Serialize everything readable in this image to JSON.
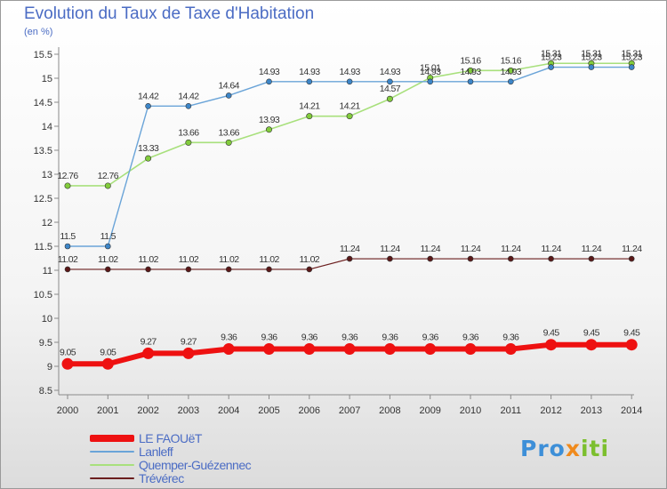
{
  "title": "Evolution du Taux de Taxe d'Habitation",
  "subtitle": "(en %)",
  "logo": {
    "part1": "Pro",
    "part2": "x",
    "part3": "iti"
  },
  "chart_data": {
    "type": "line",
    "x": [
      "2000",
      "2001",
      "2002",
      "2003",
      "2004",
      "2005",
      "2006",
      "2007",
      "2008",
      "2009",
      "2010",
      "2011",
      "2012",
      "2013",
      "2014"
    ],
    "ylim": [
      8.5,
      15.5
    ],
    "yticks": [
      8.5,
      9,
      9.5,
      10,
      10.5,
      11,
      11.5,
      12,
      12.5,
      13,
      13.5,
      14,
      14.5,
      15,
      15.5
    ],
    "grid": false,
    "legend_position": "bottom-left",
    "series": [
      {
        "name": "Trévérec",
        "color": "#6b1e1e",
        "point_color": "#5a1818",
        "width": 1.2,
        "r": 3,
        "values": [
          11.02,
          11.02,
          11.02,
          11.02,
          11.02,
          11.02,
          11.02,
          11.24,
          11.24,
          11.24,
          11.24,
          11.24,
          11.24,
          11.24,
          11.24
        ],
        "labels": [
          "11.02",
          "11.02",
          "11.02",
          "11.02",
          "11.02",
          "11.02",
          "11.02",
          "11.24",
          "11.24",
          "11.24",
          "11.24",
          "11.24",
          "11.24",
          "11.24",
          "11.24"
        ]
      },
      {
        "name": "Quemper-Guézennec",
        "color": "#a8e07c",
        "point_color": "#82cc3c",
        "width": 1.6,
        "r": 3.2,
        "values": [
          12.76,
          12.76,
          13.33,
          13.66,
          13.66,
          13.93,
          14.21,
          14.21,
          14.57,
          15.01,
          15.16,
          15.16,
          15.31,
          15.31,
          15.31
        ],
        "labels": [
          "12.76",
          "12.76",
          "13.33",
          "13.66",
          "13.66",
          "13.93",
          "14.21",
          "14.21",
          "14.57",
          "15.01",
          "15.16",
          "15.16",
          "15.31",
          "15.31",
          "15.31"
        ]
      },
      {
        "name": "Lanleff",
        "color": "#6aa4d8",
        "point_color": "#3d86c8",
        "width": 1.4,
        "r": 3,
        "values": [
          11.5,
          11.5,
          14.42,
          14.42,
          14.64,
          14.93,
          14.93,
          14.93,
          14.93,
          14.93,
          14.93,
          14.93,
          15.23,
          15.23,
          15.23
        ],
        "labels": [
          "11.5",
          "11.5",
          "14.42",
          "14.42",
          "14.64",
          "14.93",
          "14.93",
          "14.93",
          "14.93",
          "14.93",
          "14.93",
          "14.93",
          "15.23",
          "15.23",
          "15.23"
        ]
      },
      {
        "name": "LE FAOUëT",
        "color": "#ee1111",
        "point_color": "#ee1111",
        "width": 6,
        "r": 6.5,
        "values": [
          9.05,
          9.05,
          9.27,
          9.27,
          9.36,
          9.36,
          9.36,
          9.36,
          9.36,
          9.36,
          9.36,
          9.36,
          9.45,
          9.45,
          9.45
        ],
        "labels": [
          "9.05",
          "9.05",
          "9.27",
          "9.27",
          "9.36",
          "9.36",
          "9.36",
          "9.36",
          "9.36",
          "9.36",
          "9.36",
          "9.36",
          "9.45",
          "9.45",
          "9.45"
        ]
      }
    ],
    "legend_order": [
      "LE FAOUëT",
      "Lanleff",
      "Quemper-Guézennec",
      "Trévérec"
    ]
  }
}
